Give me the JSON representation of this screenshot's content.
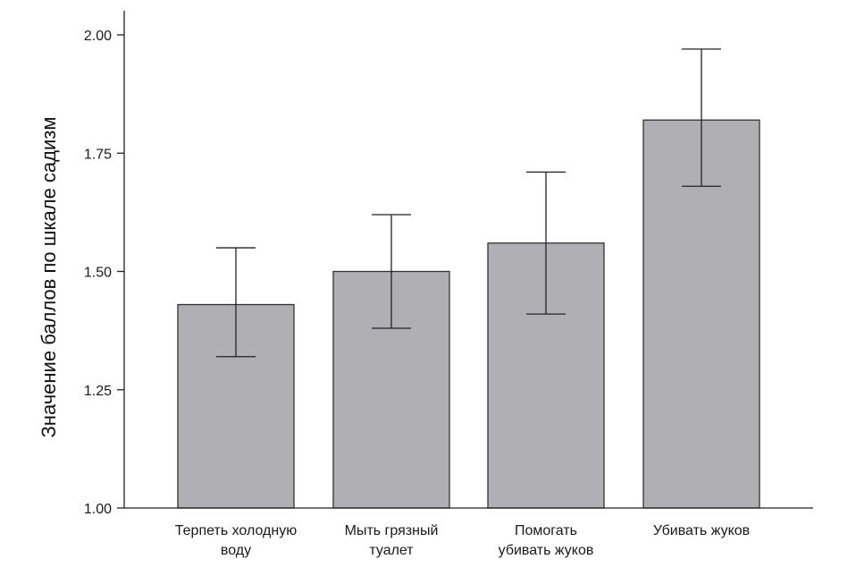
{
  "chart_data": {
    "type": "bar",
    "ylabel": "Значение баллов по шкале садизм",
    "ylim": [
      1.0,
      2.0
    ],
    "yticks": [
      "1.00",
      "1.25",
      "1.50",
      "1.75",
      "2.00"
    ],
    "yticks_values": [
      1.0,
      1.25,
      1.5,
      1.75,
      2.0
    ],
    "categories": [
      [
        "Терпеть холодную",
        "воду"
      ],
      [
        "Мыть грязный",
        "туалет"
      ],
      [
        "Помогать",
        "убивать жуков"
      ],
      [
        "Убивать жуков"
      ]
    ],
    "values": [
      1.43,
      1.5,
      1.56,
      1.82
    ],
    "error_low": [
      1.32,
      1.38,
      1.41,
      1.68
    ],
    "error_high": [
      1.55,
      1.62,
      1.71,
      1.97
    ],
    "bar_color": "#b0b0b4",
    "bar_edge_color": "#333333",
    "grid": false
  }
}
